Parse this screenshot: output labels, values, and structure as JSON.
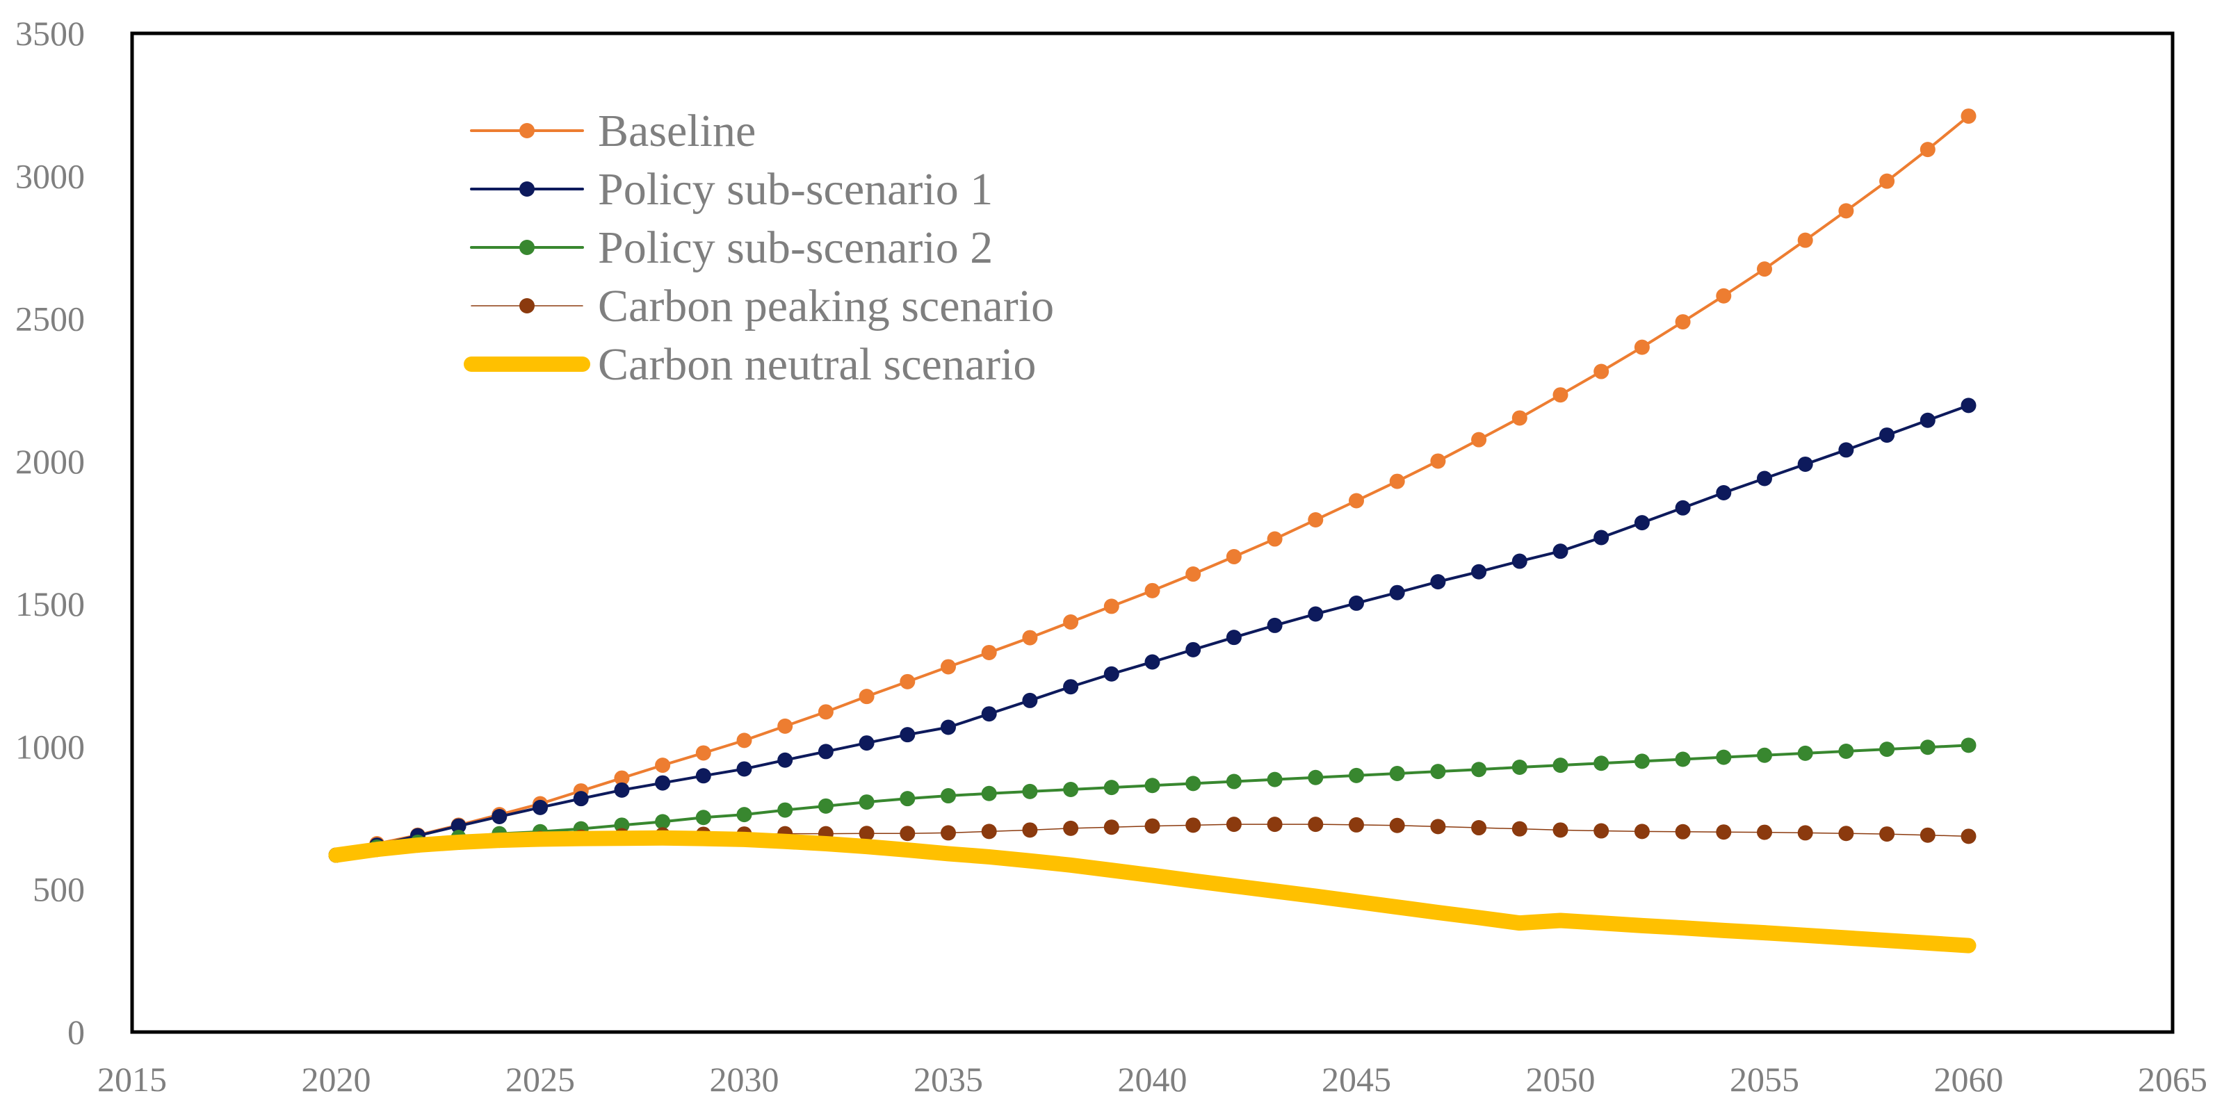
{
  "chart_data": {
    "type": "line",
    "title": "",
    "xlabel": "",
    "ylabel": "",
    "xlim": [
      2015,
      2065
    ],
    "ylim": [
      0,
      3500
    ],
    "x_ticks": [
      2015,
      2020,
      2025,
      2030,
      2035,
      2040,
      2045,
      2050,
      2055,
      2060,
      2065
    ],
    "y_ticks": [
      0,
      500,
      1000,
      1500,
      2000,
      2500,
      3000,
      3500
    ],
    "grid": false,
    "legend_position": "top-left",
    "x": [
      2020,
      2021,
      2022,
      2023,
      2024,
      2025,
      2026,
      2027,
      2028,
      2029,
      2030,
      2031,
      2032,
      2033,
      2034,
      2035,
      2036,
      2037,
      2038,
      2039,
      2040,
      2041,
      2042,
      2043,
      2044,
      2045,
      2046,
      2047,
      2048,
      2049,
      2050,
      2051,
      2052,
      2053,
      2054,
      2055,
      2056,
      2057,
      2058,
      2059,
      2060
    ],
    "series": [
      {
        "name": "Baseline",
        "color": "#ED7D31",
        "marker": true,
        "line_style": "thin",
        "values": [
          620,
          660,
          690,
          725,
          762,
          800,
          845,
          890,
          935,
          978,
          1022,
          1072,
          1122,
          1176,
          1228,
          1280,
          1330,
          1382,
          1437,
          1492,
          1547,
          1605,
          1666,
          1728,
          1795,
          1862,
          1930,
          2001,
          2076,
          2152,
          2233,
          2315,
          2400,
          2489,
          2580,
          2674,
          2775,
          2878,
          2982,
          3093,
          3210
        ]
      },
      {
        "name": "Policy sub-scenario 1",
        "color": "#0D1A5C",
        "marker": true,
        "line_style": "thin",
        "values": [
          620,
          655,
          688,
          722,
          755,
          787,
          818,
          848,
          873,
          898,
          922,
          953,
          983,
          1013,
          1042,
          1068,
          1115,
          1162,
          1210,
          1255,
          1297,
          1340,
          1383,
          1425,
          1465,
          1503,
          1540,
          1578,
          1613,
          1650,
          1685,
          1733,
          1785,
          1837,
          1890,
          1940,
          1990,
          2040,
          2092,
          2144,
          2196
        ]
      },
      {
        "name": "Policy sub-scenario 2",
        "color": "#38872F",
        "marker": true,
        "line_style": "thin",
        "values": [
          620,
          648,
          665,
          682,
          695,
          702,
          712,
          725,
          737,
          752,
          762,
          778,
          792,
          806,
          818,
          828,
          836,
          843,
          850,
          857,
          864,
          871,
          878,
          885,
          892,
          899,
          906,
          913,
          920,
          928,
          935,
          942,
          949,
          956,
          963,
          970,
          977,
          984,
          991,
          998,
          1005
        ]
      },
      {
        "name": "Carbon peaking scenario",
        "color": "#8B3A0E",
        "marker": true,
        "line_style": "hairline",
        "values": [
          620,
          640,
          655,
          665,
          672,
          678,
          683,
          688,
          691,
          693,
          694,
          695,
          695,
          696,
          696,
          698,
          703,
          708,
          714,
          718,
          722,
          725,
          728,
          728,
          728,
          726,
          724,
          720,
          716,
          712,
          708,
          705,
          703,
          702,
          701,
          700,
          698,
          696,
          694,
          690,
          686
        ]
      },
      {
        "name": "Carbon neutral scenario",
        "color": "#FFC000",
        "marker": false,
        "line_style": "thick",
        "values": [
          620,
          640,
          655,
          665,
          672,
          676,
          678,
          679,
          680,
          678,
          675,
          668,
          660,
          650,
          638,
          625,
          614,
          600,
          585,
          567,
          549,
          530,
          512,
          494,
          476,
          457,
          438,
          419,
          401,
          382,
          391,
          382,
          373,
          365,
          356,
          348,
          339,
          330,
          321,
          312,
          303
        ]
      }
    ]
  }
}
